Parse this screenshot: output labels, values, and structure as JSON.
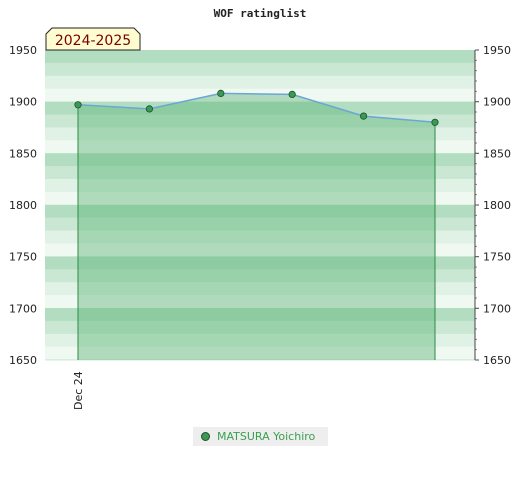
{
  "chart_data": {
    "type": "area",
    "title": "WOF ratinglist",
    "season_label": "2024-2025",
    "ylim": [
      1650,
      1950
    ],
    "yticks": [
      1650,
      1700,
      1750,
      1800,
      1850,
      1900,
      1950
    ],
    "ytick_labels": [
      "1650",
      "1700",
      "1750",
      "1800",
      "1850",
      "1900",
      "1950"
    ],
    "x_tick_label": "Dec 24",
    "series": [
      {
        "name": "MATSURA Yoichiro",
        "values": [
          1897,
          1893,
          1908,
          1907,
          1886,
          1880
        ]
      }
    ],
    "grid": true,
    "right_axis": true,
    "legend_position": "bottom"
  },
  "colors": {
    "line": "#6aa6d6",
    "area": "#5fb97a",
    "marker": "#3a9a55",
    "band_dark": "#b3ddc0",
    "band_light": "#f0f8f2",
    "legend_text": "#3aa050",
    "season_bg": "#fffdd0",
    "season_text": "#7a0000"
  }
}
